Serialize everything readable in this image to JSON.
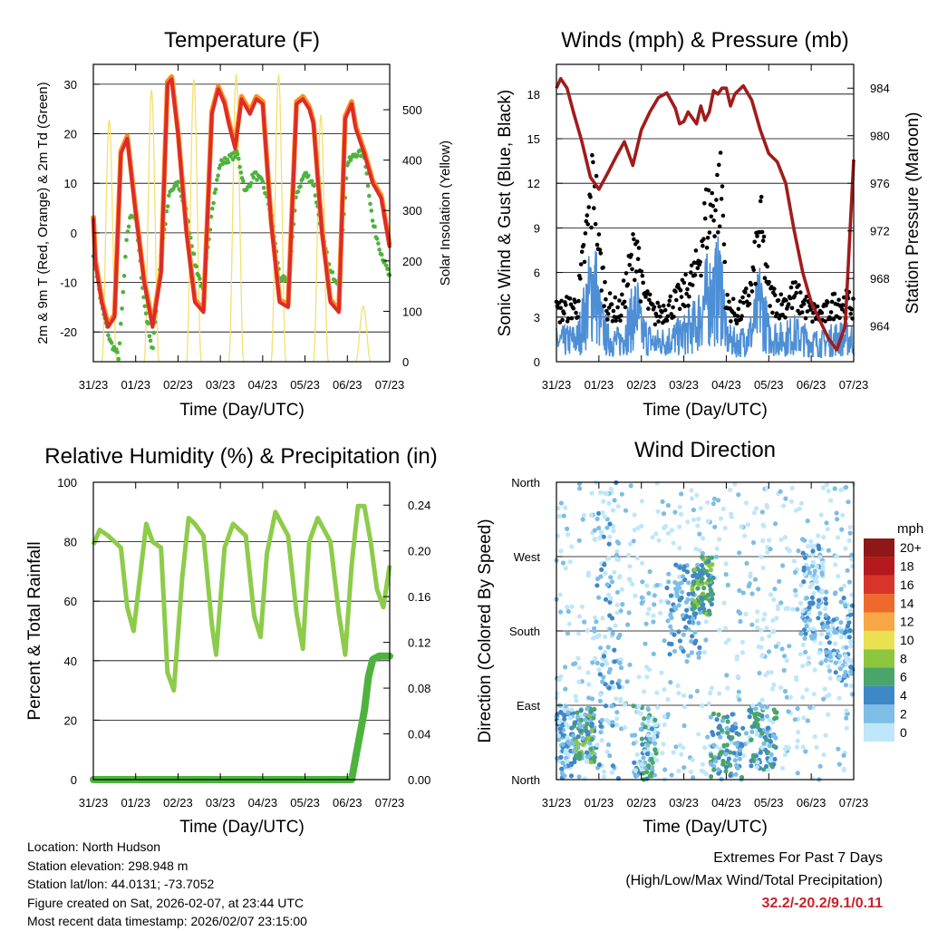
{
  "chart_data": [
    {
      "type": "line",
      "title": "Temperature (F)",
      "xlabel": "Time (Day/UTC)",
      "ylabel": "2m & 9m T (Red, Orange) & 2m Td (Green)",
      "y2label": "Solar Insolation (Yellow)",
      "ylim": [
        -26,
        34
      ],
      "y2lim": [
        0,
        590
      ],
      "x_ticks": [
        "31/23",
        "01/23",
        "02/23",
        "03/23",
        "04/23",
        "05/23",
        "06/23",
        "07/23"
      ],
      "y_ticks": [
        -20,
        -10,
        0,
        10,
        20,
        30
      ],
      "y2_ticks": [
        0,
        100,
        200,
        300,
        400,
        500
      ],
      "series": [
        {
          "name": "2m T",
          "color": "#dd2b2b",
          "x": [
            0,
            0.05,
            0.2,
            0.35,
            0.5,
            0.65,
            0.8,
            1,
            1.2,
            1.4,
            1.6,
            1.75,
            1.85,
            2,
            2.2,
            2.4,
            2.6,
            2.8,
            2.95,
            3.1,
            3.2,
            3.35,
            3.5,
            3.7,
            3.85,
            4,
            4.2,
            4.4,
            4.6,
            4.8,
            4.95,
            5.1,
            5.2,
            5.4,
            5.6,
            5.8,
            5.95,
            6.1,
            6.2,
            6.4,
            6.6,
            6.8,
            7
          ],
          "values": [
            3,
            -6,
            -14,
            -19,
            -17,
            16,
            19,
            4,
            -10,
            -19,
            -8,
            30,
            31,
            20,
            0,
            -14,
            -16,
            24,
            29,
            26,
            22,
            17,
            27,
            24,
            27,
            26,
            2,
            -14,
            -15,
            26,
            27,
            25,
            22,
            0,
            -14,
            -16,
            23,
            26,
            21,
            16,
            10,
            7,
            -3
          ]
        },
        {
          "name": "9m T",
          "color": "#ff8c1a",
          "x": [
            0,
            0.05,
            0.2,
            0.35,
            0.5,
            0.65,
            0.8,
            1,
            1.2,
            1.4,
            1.6,
            1.75,
            1.85,
            2,
            2.2,
            2.4,
            2.6,
            2.8,
            2.95,
            3.1,
            3.2,
            3.35,
            3.5,
            3.7,
            3.85,
            4,
            4.2,
            4.4,
            4.6,
            4.8,
            4.95,
            5.1,
            5.2,
            5.4,
            5.6,
            5.8,
            5.95,
            6.1,
            6.2,
            6.4,
            6.6,
            6.8,
            7
          ],
          "values": [
            3.5,
            -5.5,
            -13.5,
            -18.5,
            -16.5,
            16.5,
            19.5,
            4.5,
            -9.5,
            -18.5,
            -7.5,
            30.5,
            31.5,
            20.5,
            0.5,
            -13.5,
            -15.5,
            24.5,
            29.5,
            26.5,
            22.5,
            17.5,
            27.5,
            24.5,
            27.5,
            26.5,
            2.5,
            -13.5,
            -14.5,
            26.5,
            27.5,
            25.5,
            22.5,
            0.5,
            -13.5,
            -15.5,
            23.5,
            26.5,
            21.5,
            16.5,
            10.5,
            7.5,
            -2.5
          ]
        },
        {
          "name": "2m Td",
          "color": "#4db33d",
          "x": [
            0,
            0.2,
            0.4,
            0.6,
            0.8,
            0.9,
            1,
            1.2,
            1.4,
            1.6,
            1.8,
            2,
            2.2,
            2.4,
            2.6,
            2.8,
            3,
            3.2,
            3.4,
            3.6,
            3.8,
            4,
            4.2,
            4.4,
            4.6,
            4.8,
            5,
            5.2,
            5.4,
            5.6,
            5.8,
            6,
            6.2,
            6.4,
            6.6,
            6.8,
            7
          ],
          "values": [
            -4,
            -15,
            -22,
            -25,
            0,
            4,
            3,
            -14,
            -24,
            -4,
            8,
            10,
            4,
            -6,
            -12,
            5,
            14,
            15,
            16,
            8,
            12,
            10,
            4,
            -9,
            -10,
            8,
            12,
            10,
            0,
            -8,
            -10,
            14,
            16,
            16,
            2,
            -4,
            -9
          ]
        },
        {
          "name": "Solar Insolation",
          "axis": "y2",
          "color": "#f5df6e",
          "day_peaks": [
            480,
            540,
            560,
            570,
            570,
            490,
            110
          ]
        }
      ]
    },
    {
      "type": "line",
      "title": "Winds (mph) & Pressure (mb)",
      "xlabel": "Time (Day/UTC)",
      "ylabel": "Sonic Wind & Gust (Blue, Black)",
      "y2label": "Station Pressure (Maroon)",
      "ylim": [
        0,
        20
      ],
      "y2lim": [
        961,
        986
      ],
      "x_ticks": [
        "31/23",
        "01/23",
        "02/23",
        "03/23",
        "04/23",
        "05/23",
        "06/23",
        "07/23"
      ],
      "y_ticks": [
        0,
        3,
        6,
        9,
        12,
        15,
        18
      ],
      "y2_ticks": [
        964,
        968,
        972,
        976,
        980,
        984
      ],
      "series": [
        {
          "name": "Station Pressure",
          "axis": "y2",
          "color": "#a01c1c",
          "x": [
            0,
            0.1,
            0.25,
            0.4,
            0.6,
            0.8,
            1,
            1.2,
            1.4,
            1.6,
            1.8,
            2,
            2.2,
            2.4,
            2.6,
            2.8,
            2.9,
            3,
            3.1,
            3.2,
            3.3,
            3.4,
            3.5,
            3.6,
            3.7,
            3.8,
            3.9,
            4,
            4.1,
            4.2,
            4.4,
            4.6,
            4.8,
            5,
            5.2,
            5.4,
            5.6,
            5.8,
            6,
            6.2,
            6.4,
            6.6,
            6.8,
            7
          ],
          "values": [
            984,
            984.8,
            984,
            982,
            979.5,
            976.5,
            975.5,
            976.8,
            978.2,
            979.5,
            977.5,
            980.5,
            982,
            983.2,
            983.6,
            982.3,
            981,
            981.2,
            982,
            981.5,
            981,
            982.5,
            981.3,
            982,
            983.8,
            983.5,
            984,
            984,
            982.5,
            983.5,
            984.2,
            983,
            980.5,
            978.5,
            977.8,
            976,
            972,
            968.5,
            966,
            964.5,
            963,
            962,
            964,
            978
          ]
        },
        {
          "name": "Sonic Wind",
          "color": "#4d8fd6",
          "mean_x": [
            0,
            0.5,
            0.9,
            1,
            1.2,
            1.5,
            1.9,
            2,
            2.3,
            2.7,
            3,
            3.3,
            3.5,
            3.7,
            3.9,
            4,
            4.3,
            4.6,
            4.8,
            5,
            5.3,
            5.6,
            6,
            6.3,
            6.6,
            7
          ],
          "mean_values": [
            1.3,
            1.5,
            5.5,
            3,
            1.5,
            1.3,
            3.5,
            2,
            1.2,
            1.5,
            1.8,
            2.5,
            4,
            4.5,
            5,
            1.5,
            1.2,
            2,
            4,
            1.8,
            1.5,
            1.8,
            1.3,
            1.2,
            1.6,
            1.5
          ]
        },
        {
          "name": "Gust",
          "color": "#000000"
        }
      ]
    },
    {
      "type": "line",
      "title": "Relative Humidity (%) & Precipitation (in)",
      "xlabel": "Time (Day/UTC)",
      "ylabel": "Percent & Total Rainfall",
      "ylim": [
        0,
        100
      ],
      "y2lim": [
        0,
        0.26
      ],
      "x_ticks": [
        "31/23",
        "01/23",
        "02/23",
        "03/23",
        "04/23",
        "05/23",
        "06/23",
        "07/23"
      ],
      "y_ticks": [
        0,
        20,
        40,
        60,
        80,
        100
      ],
      "y2_ticks": [
        "0.00",
        "0.04",
        "0.08",
        "0.12",
        "0.16",
        "0.20",
        "0.24"
      ],
      "series": [
        {
          "name": "Relative Humidity",
          "color": "#8dcc4a",
          "x": [
            0,
            0.15,
            0.35,
            0.5,
            0.65,
            0.8,
            0.95,
            1.1,
            1.25,
            1.4,
            1.6,
            1.75,
            1.9,
            2.1,
            2.25,
            2.4,
            2.6,
            2.8,
            2.9,
            3.1,
            3.3,
            3.45,
            3.6,
            3.8,
            3.95,
            4.1,
            4.3,
            4.45,
            4.6,
            4.8,
            4.95,
            5.1,
            5.3,
            5.45,
            5.6,
            5.8,
            5.95,
            6.1,
            6.25,
            6.4,
            6.55,
            6.7,
            6.85,
            7
          ],
          "values": [
            79,
            84,
            82,
            80,
            78,
            58,
            50,
            68,
            86,
            80,
            78,
            36,
            30,
            68,
            88,
            86,
            82,
            52,
            42,
            78,
            86,
            84,
            82,
            55,
            48,
            76,
            90,
            86,
            82,
            56,
            44,
            80,
            88,
            84,
            80,
            56,
            42,
            72,
            92,
            92,
            80,
            64,
            58,
            72
          ]
        },
        {
          "name": "Total Precipitation",
          "axis": "y2",
          "color": "#4db33d",
          "x": [
            0,
            6.1,
            6.2,
            6.3,
            6.4,
            6.5,
            6.6,
            6.75,
            7
          ],
          "values": [
            0,
            0,
            0.02,
            0.04,
            0.06,
            0.09,
            0.105,
            0.108,
            0.108
          ]
        }
      ]
    },
    {
      "type": "scatter",
      "title": "Wind Direction",
      "xlabel": "Time (Day/UTC)",
      "ylabel": "Direction (Colored By Speed)",
      "x_ticks": [
        "31/23",
        "01/23",
        "02/23",
        "03/23",
        "04/23",
        "05/23",
        "06/23",
        "07/23"
      ],
      "y_ticks": [
        "North",
        "East",
        "South",
        "West",
        "North"
      ],
      "colorbar": {
        "title": "mph",
        "labels": [
          "0",
          "2",
          "4",
          "6",
          "8",
          "10",
          "12",
          "14",
          "16",
          "18",
          "20+"
        ],
        "colors": [
          "#bfe6fa",
          "#7dbde6",
          "#3f88c8",
          "#4aa56b",
          "#8cc63f",
          "#e9e150",
          "#f7a844",
          "#ee6a2c",
          "#d8342a",
          "#b5191d",
          "#8e1717"
        ]
      },
      "clusters": [
        {
          "x": [
            0,
            0.4
          ],
          "dir": [
            0,
            90
          ],
          "speeds": [
            0,
            2,
            4
          ]
        },
        {
          "x": [
            0.4,
            0.9
          ],
          "dir": [
            20,
            90
          ],
          "speeds": [
            2,
            4,
            6,
            8
          ]
        },
        {
          "x": [
            0.9,
            1.5
          ],
          "dir": [
            0,
            360
          ],
          "speeds": [
            0,
            2,
            4
          ]
        },
        {
          "x": [
            1.8,
            2.4
          ],
          "dir": [
            0,
            90
          ],
          "speeds": [
            0,
            2,
            4,
            6
          ]
        },
        {
          "x": [
            2.6,
            3.4
          ],
          "dir": [
            150,
            260
          ],
          "speeds": [
            2,
            4
          ]
        },
        {
          "x": [
            3.2,
            3.7
          ],
          "dir": [
            200,
            270
          ],
          "speeds": [
            4,
            6,
            8
          ]
        },
        {
          "x": [
            3.6,
            4.4
          ],
          "dir": [
            0,
            80
          ],
          "speeds": [
            2,
            4,
            6
          ]
        },
        {
          "x": [
            4.5,
            5.2
          ],
          "dir": [
            10,
            90
          ],
          "speeds": [
            0,
            2,
            4,
            6
          ]
        },
        {
          "x": [
            5.8,
            6.3
          ],
          "dir": [
            170,
            290
          ],
          "speeds": [
            0,
            2,
            4
          ]
        },
        {
          "x": [
            6.3,
            7
          ],
          "dir": [
            120,
            220
          ],
          "speeds": [
            0,
            2,
            4
          ]
        }
      ]
    }
  ],
  "info": {
    "location": "Location: North Hudson",
    "elevation": "Station elevation: 298.948 m",
    "latlon": "Station lat/lon: 44.0131; -73.7052",
    "created": "Figure created on Sat, 2026-02-07, at 23:44 UTC",
    "recent": "Most recent data timestamp: 2026/02/07 23:15:00"
  },
  "extremes": {
    "title": "Extremes For Past 7 Days",
    "subtitle": "(High/Low/Max Wind/Total Precipitation)",
    "values": "32.2/-20.2/9.1/0.11"
  }
}
